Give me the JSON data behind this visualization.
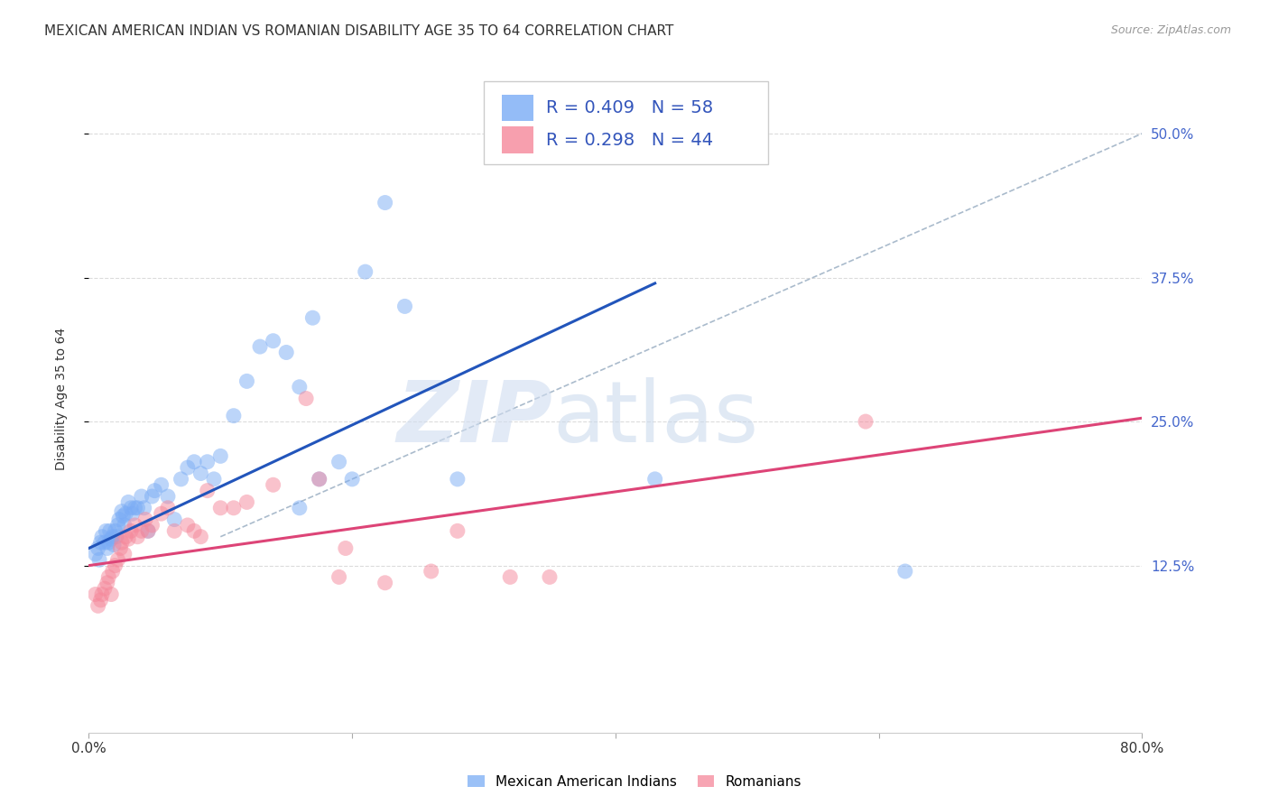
{
  "title": "MEXICAN AMERICAN INDIAN VS ROMANIAN DISABILITY AGE 35 TO 64 CORRELATION CHART",
  "source": "Source: ZipAtlas.com",
  "ylabel": "Disability Age 35 to 64",
  "xlim": [
    0.0,
    0.8
  ],
  "ylim": [
    -0.02,
    0.56
  ],
  "xticks": [
    0.0,
    0.2,
    0.4,
    0.6,
    0.8
  ],
  "xtick_labels": [
    "0.0%",
    "",
    "",
    "",
    "80.0%"
  ],
  "ytick_labels": [
    "12.5%",
    "25.0%",
    "37.5%",
    "50.0%"
  ],
  "ytick_positions": [
    0.125,
    0.25,
    0.375,
    0.5
  ],
  "background_color": "#ffffff",
  "grid_color": "#cccccc",
  "legend_r1": "R = 0.409",
  "legend_n1": "N = 58",
  "legend_r2": "R = 0.298",
  "legend_n2": "N = 44",
  "label1": "Mexican American Indians",
  "label2": "Romanians",
  "color1": "#7aacf5",
  "color2": "#f5879a",
  "trendline1_color": "#2255bb",
  "trendline2_color": "#dd4477",
  "dashed_line_color": "#aabbcc",
  "scatter1_x": [
    0.005,
    0.007,
    0.008,
    0.009,
    0.01,
    0.012,
    0.013,
    0.014,
    0.015,
    0.016,
    0.017,
    0.018,
    0.019,
    0.02,
    0.021,
    0.022,
    0.023,
    0.025,
    0.026,
    0.027,
    0.028,
    0.03,
    0.032,
    0.033,
    0.035,
    0.037,
    0.04,
    0.042,
    0.045,
    0.048,
    0.05,
    0.055,
    0.06,
    0.065,
    0.07,
    0.075,
    0.08,
    0.085,
    0.09,
    0.095,
    0.1,
    0.11,
    0.12,
    0.13,
    0.14,
    0.15,
    0.16,
    0.17,
    0.19,
    0.2,
    0.21,
    0.225,
    0.24,
    0.28,
    0.16,
    0.175,
    0.43,
    0.62
  ],
  "scatter1_y": [
    0.135,
    0.14,
    0.13,
    0.145,
    0.15,
    0.145,
    0.155,
    0.14,
    0.145,
    0.155,
    0.148,
    0.15,
    0.143,
    0.155,
    0.15,
    0.16,
    0.165,
    0.172,
    0.168,
    0.16,
    0.17,
    0.18,
    0.175,
    0.17,
    0.175,
    0.175,
    0.185,
    0.175,
    0.155,
    0.185,
    0.19,
    0.195,
    0.185,
    0.165,
    0.2,
    0.21,
    0.215,
    0.205,
    0.215,
    0.2,
    0.22,
    0.255,
    0.285,
    0.315,
    0.32,
    0.31,
    0.28,
    0.34,
    0.215,
    0.2,
    0.38,
    0.44,
    0.35,
    0.2,
    0.175,
    0.2,
    0.2,
    0.12
  ],
  "scatter2_x": [
    0.005,
    0.007,
    0.009,
    0.01,
    0.012,
    0.014,
    0.015,
    0.017,
    0.018,
    0.02,
    0.022,
    0.024,
    0.025,
    0.027,
    0.028,
    0.03,
    0.032,
    0.035,
    0.037,
    0.04,
    0.043,
    0.045,
    0.048,
    0.055,
    0.06,
    0.065,
    0.075,
    0.08,
    0.085,
    0.09,
    0.1,
    0.11,
    0.12,
    0.14,
    0.175,
    0.19,
    0.225,
    0.26,
    0.32,
    0.35,
    0.28,
    0.165,
    0.195,
    0.59
  ],
  "scatter2_y": [
    0.1,
    0.09,
    0.095,
    0.1,
    0.105,
    0.11,
    0.115,
    0.1,
    0.12,
    0.125,
    0.13,
    0.14,
    0.145,
    0.135,
    0.15,
    0.148,
    0.155,
    0.16,
    0.15,
    0.155,
    0.165,
    0.155,
    0.16,
    0.17,
    0.175,
    0.155,
    0.16,
    0.155,
    0.15,
    0.19,
    0.175,
    0.175,
    0.18,
    0.195,
    0.2,
    0.115,
    0.11,
    0.12,
    0.115,
    0.115,
    0.155,
    0.27,
    0.14,
    0.25
  ],
  "trendline1_x": [
    0.0,
    0.43
  ],
  "trendline1_y": [
    0.14,
    0.37
  ],
  "trendline2_x": [
    0.0,
    0.8
  ],
  "trendline2_y": [
    0.125,
    0.253
  ],
  "dashed_line_x": [
    0.1,
    0.8
  ],
  "dashed_line_y": [
    0.15,
    0.5
  ],
  "watermark_zip": "ZIP",
  "watermark_atlas": "atlas",
  "title_fontsize": 11,
  "axis_label_fontsize": 10,
  "tick_fontsize": 11,
  "legend_fontsize": 14,
  "source_fontsize": 9,
  "right_tick_color": "#4466cc",
  "legend_text_color": "#3355bb"
}
